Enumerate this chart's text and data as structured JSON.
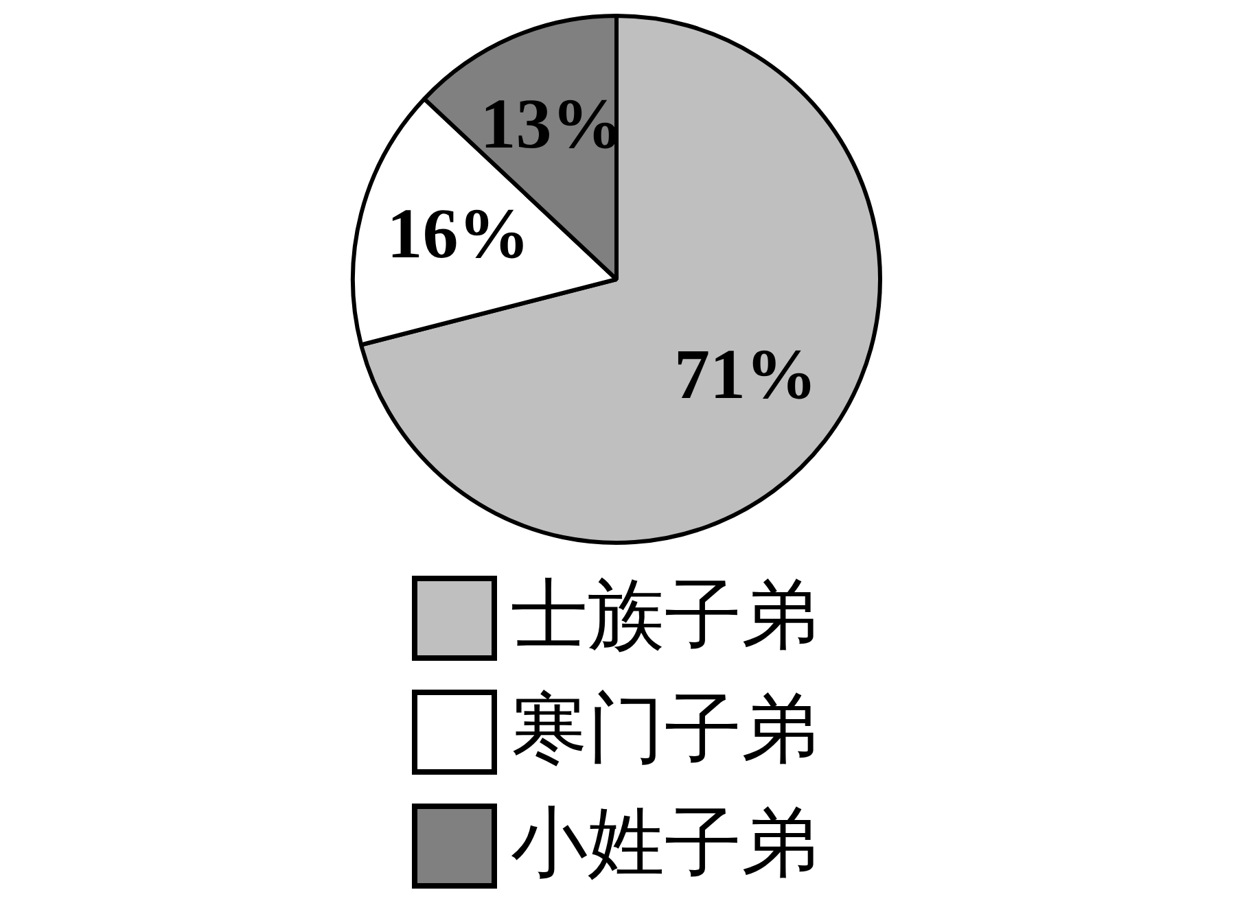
{
  "chart_data": {
    "type": "pie",
    "categories": [
      "士族子弟",
      "寒门子弟",
      "小姓子弟"
    ],
    "values": [
      71,
      16,
      13
    ],
    "colors": [
      "#bfbfbf",
      "#ffffff",
      "#808080"
    ],
    "value_labels": [
      "71%",
      "16%",
      "13%"
    ],
    "legend": "bottom"
  }
}
